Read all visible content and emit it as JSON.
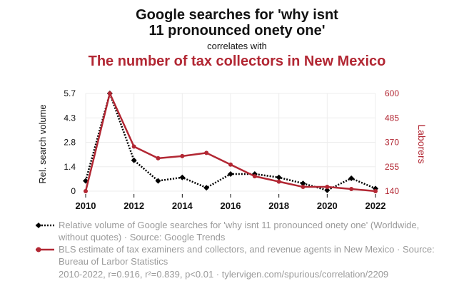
{
  "title_line1": "Google searches for 'why isnt",
  "title_line2": "11 pronounced onety one'",
  "correlates_with": "correlates with",
  "title2": "The number of tax collectors in New Mexico",
  "colors": {
    "series1": "#000000",
    "series2": "#b22733",
    "axis_right": "#b22733"
  },
  "chart_data": {
    "type": "line",
    "x": [
      2010,
      2011,
      2012,
      2013,
      2014,
      2015,
      2016,
      2017,
      2018,
      2019,
      2020,
      2021,
      2022
    ],
    "xticks": [
      "2010",
      "2012",
      "2014",
      "2016",
      "2018",
      "2020",
      "2022"
    ],
    "xlim": [
      2010,
      2022
    ],
    "ylabel_left": "Rel. search volume",
    "ylabel_right": "Laborers",
    "yticks_left": [
      "0",
      "1.4",
      "2.8",
      "4.3",
      "5.7"
    ],
    "yticks_right": [
      "140",
      "255",
      "370",
      "485",
      "600"
    ],
    "ylim_left": [
      0,
      5.7
    ],
    "ylim_right": [
      140,
      600
    ],
    "grid": true,
    "series": [
      {
        "name": "Relative volume of Google searches for 'why isnt 11 pronounced onety one' (Worldwide, without quotes) · Source: Google Trends",
        "axis": "left",
        "style": "dotted",
        "marker": "diamond",
        "values": [
          0.6,
          5.7,
          1.8,
          0.6,
          0.8,
          0.2,
          1.0,
          1.0,
          0.8,
          0.45,
          0.05,
          0.75,
          0.15
        ]
      },
      {
        "name": "BLS estimate of tax examiners and collectors, and revenue agents in New Mexico · Source: Bureau of Larbor Statistics",
        "axis": "right",
        "style": "solid",
        "marker": "circle",
        "values": [
          140,
          600,
          350,
          295,
          305,
          320,
          265,
          210,
          185,
          160,
          160,
          150,
          140
        ]
      }
    ]
  },
  "legend1_text": "Relative volume of Google searches for 'why isnt 11 pronounced onety one' (Worldwide, without quotes) · Source: Google Trends",
  "legend2_text": "BLS estimate of tax examiners and collectors, and revenue agents in New Mexico · Source: Bureau of Larbor Statistics",
  "footer": "2010-2022, r=0.916, r²=0.839, p<0.01 · tylervigen.com/spurious/correlation/2209"
}
